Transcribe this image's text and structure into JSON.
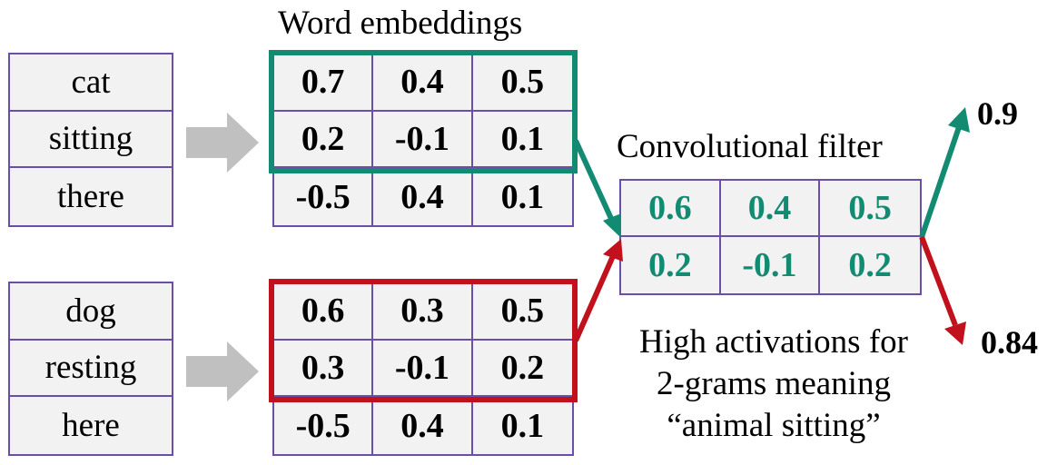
{
  "titles": {
    "embeddings": "Word embeddings",
    "filter": "Convolutional filter"
  },
  "caption": {
    "line1": "High activations for",
    "line2": "2-grams meaning",
    "line3": "“animal sitting”"
  },
  "sentence1": {
    "words": [
      "cat",
      "sitting",
      "there"
    ],
    "embeddings": [
      [
        "0.7",
        "0.4",
        "0.5"
      ],
      [
        "0.2",
        "-0.1",
        "0.1"
      ],
      [
        "-0.5",
        "0.4",
        "0.1"
      ]
    ],
    "output": "0.9"
  },
  "sentence2": {
    "words": [
      "dog",
      "resting",
      "here"
    ],
    "embeddings": [
      [
        "0.6",
        "0.3",
        "0.5"
      ],
      [
        "0.3",
        "-0.1",
        "0.2"
      ],
      [
        "-0.5",
        "0.4",
        "0.1"
      ]
    ],
    "output": "0.84"
  },
  "filter": [
    [
      "0.6",
      "0.4",
      "0.5"
    ],
    [
      "0.2",
      "-0.1",
      "0.2"
    ]
  ],
  "colors": {
    "border": "#6a4ea8",
    "cell_bg": "#f2f2f2",
    "green": "#138a72",
    "red": "#c0111d",
    "arrow_gray": "#c0c0c0"
  }
}
